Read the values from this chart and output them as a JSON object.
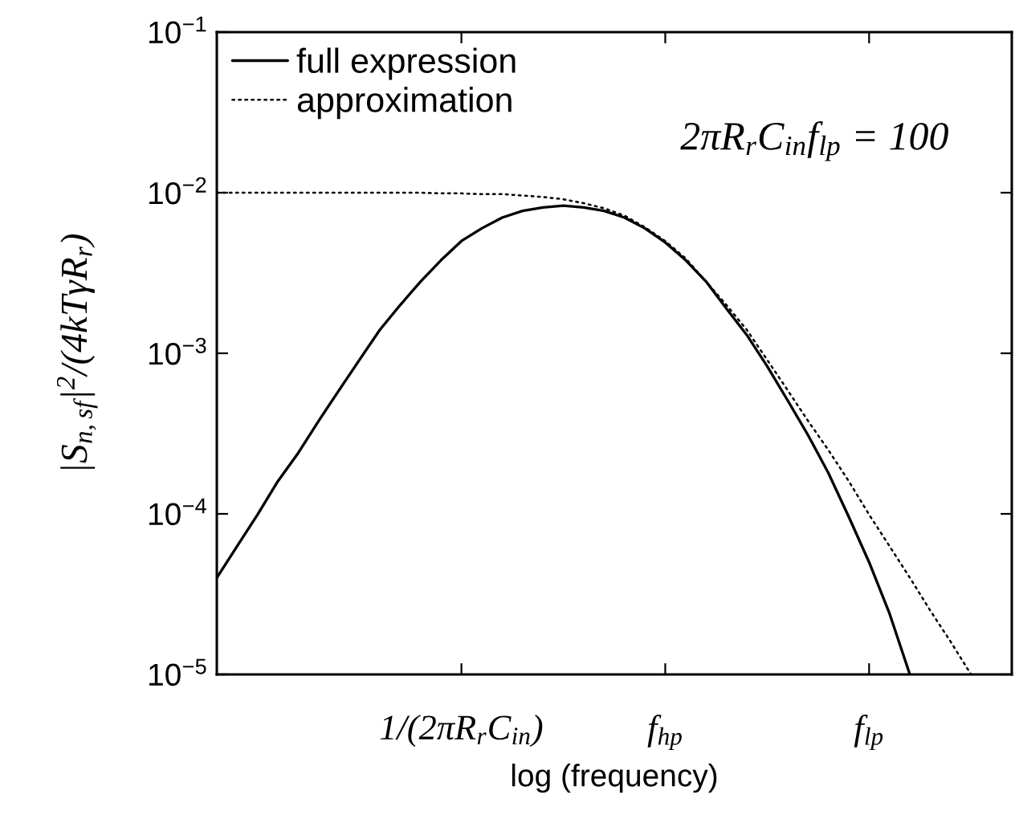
{
  "chart_data": {
    "type": "line",
    "xlabel": "log (frequency)",
    "ylabel": "|S$_{n,sf}$|$^{2}$/(4kTγR$_{r}$)",
    "annotations": [
      "2πR$_{r}$C$_{in}$f$_{lp}$ = 100"
    ],
    "log": "y",
    "ylim": [
      1e-05,
      0.1
    ],
    "categories": [
      null,
      null,
      null,
      null,
      null,
      null,
      null,
      null,
      null,
      null,
      null,
      null,
      "1/(2πR$_{r}$C$_{in}$)",
      null,
      null,
      null,
      null,
      null,
      null,
      null,
      null,
      null,
      "f$_{hp}$",
      null,
      null,
      null,
      null,
      null,
      null,
      null,
      null,
      null,
      "f$_{lp}$",
      null,
      null,
      null,
      null,
      null,
      null,
      null
    ],
    "yticks": [
      {
        "value": 1e-05,
        "label": "10$^{−5}$"
      },
      {
        "value": 0.0001,
        "label": "10$^{−4}$"
      },
      {
        "value": 0.001,
        "label": "10$^{−3}$"
      },
      {
        "value": 0.01,
        "label": "10$^{−2}$"
      },
      {
        "value": 0.1,
        "label": "10$^{−1}$"
      }
    ],
    "grid": false,
    "legend": "top left",
    "series": [
      {
        "name": "full expression",
        "color": "#000000",
        "line_style": "solid",
        "values": [
          4e-05,
          6.3e-05,
          9.9e-05,
          0.00016,
          0.00024,
          0.00038,
          0.00059,
          0.00091,
          0.0014,
          0.002,
          0.0028,
          0.0038,
          0.005,
          0.006,
          0.007,
          0.0077,
          0.0081,
          0.0083,
          0.0081,
          0.0077,
          0.007,
          0.006,
          0.0049,
          0.0038,
          0.0028,
          0.0019,
          0.0013,
          0.00083,
          0.00051,
          0.00031,
          0.00018,
          9.6e-05,
          5e-05,
          2.4e-05,
          1e-05,
          null,
          null,
          null,
          null,
          null
        ]
      },
      {
        "name": "approximation",
        "color": "#000000",
        "line_style": "dotted",
        "values": [
          0.01,
          0.01,
          0.01,
          0.01,
          0.01,
          0.01,
          0.01,
          0.01,
          0.01,
          0.01,
          0.01,
          0.0099,
          0.0099,
          0.0098,
          0.0098,
          0.0096,
          0.0094,
          0.0091,
          0.0086,
          0.008,
          0.0072,
          0.0061,
          0.005,
          0.0039,
          0.0028,
          0.002,
          0.0014,
          0.00091,
          0.00059,
          0.00038,
          0.00025,
          0.00016,
          9.9e-05,
          6.3e-05,
          4e-05,
          2.5e-05,
          1.6e-05,
          1e-05,
          null,
          null
        ]
      }
    ]
  }
}
